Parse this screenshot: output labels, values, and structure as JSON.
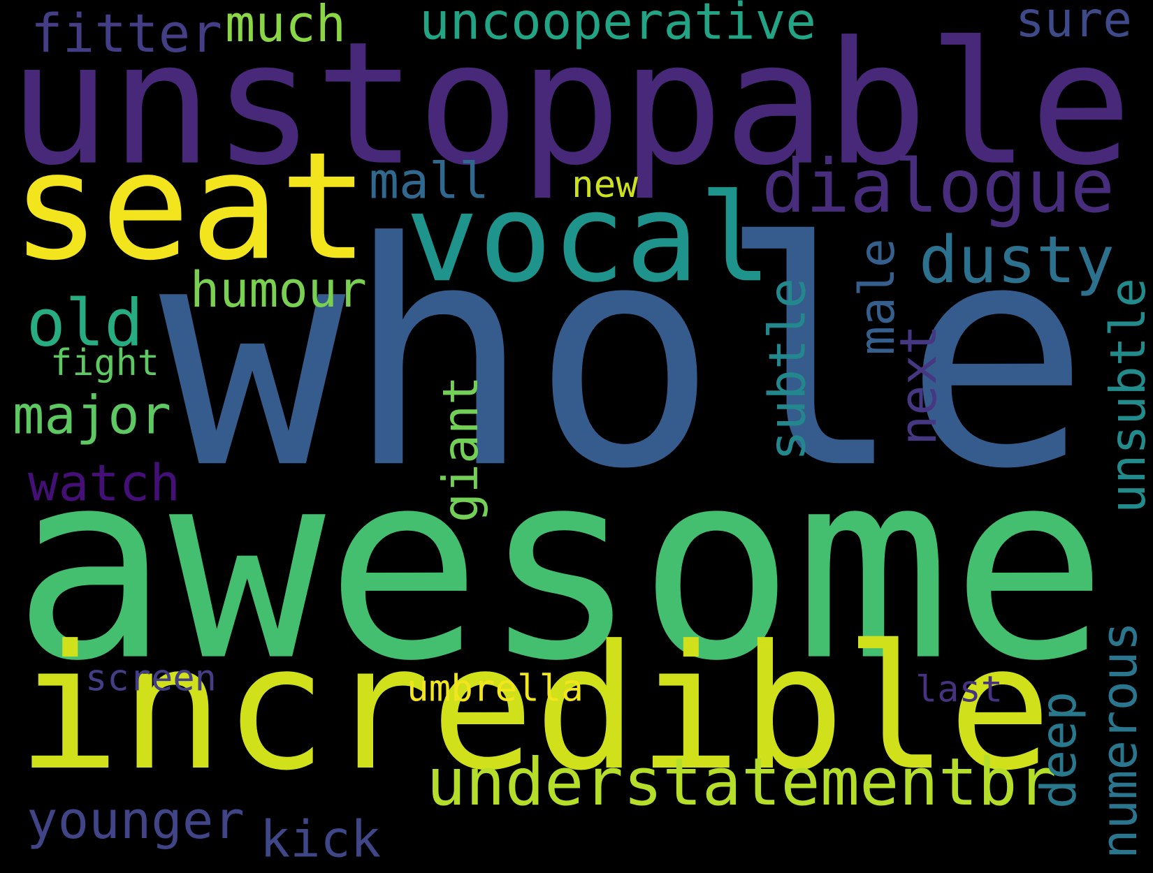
{
  "background": "#000000",
  "words": [
    {
      "text": "unstoppable",
      "color": "#482878"
    },
    {
      "text": "whole",
      "color": "#365c8d"
    },
    {
      "text": "awesome",
      "color": "#44bf70"
    },
    {
      "text": "incredible",
      "color": "#d0e11c"
    },
    {
      "text": "seat",
      "color": "#f2e51d"
    },
    {
      "text": "vocal",
      "color": "#1f948c"
    },
    {
      "text": "dialogue",
      "color": "#472d7b"
    },
    {
      "text": "dusty",
      "color": "#2c728e"
    },
    {
      "text": "understatementbr",
      "color": "#b5de2b"
    },
    {
      "text": "uncooperative",
      "color": "#21a585"
    },
    {
      "text": "fitter",
      "color": "#433e85"
    },
    {
      "text": "much",
      "color": "#8bd646"
    },
    {
      "text": "sure",
      "color": "#3e4a89"
    },
    {
      "text": "mall",
      "color": "#31688e"
    },
    {
      "text": "new",
      "color": "#cde11d"
    },
    {
      "text": "humour",
      "color": "#7ad151"
    },
    {
      "text": "old",
      "color": "#27ad81"
    },
    {
      "text": "fight",
      "color": "#5ec962"
    },
    {
      "text": "major",
      "color": "#5ec962"
    },
    {
      "text": "watch",
      "color": "#440f76"
    },
    {
      "text": "younger",
      "color": "#414487"
    },
    {
      "text": "kick",
      "color": "#3f4788"
    },
    {
      "text": "screen",
      "color": "#433e85"
    },
    {
      "text": "umbrella",
      "color": "#f1e51d"
    },
    {
      "text": "last",
      "color": "#46327e"
    },
    {
      "text": "giant",
      "color": "#73d056"
    },
    {
      "text": "subtle",
      "color": "#23888e"
    },
    {
      "text": "male",
      "color": "#355f8d"
    },
    {
      "text": "next",
      "color": "#453781"
    },
    {
      "text": "unsubtle",
      "color": "#228c8d"
    },
    {
      "text": "deep",
      "color": "#29798e"
    },
    {
      "text": "numerous",
      "color": "#2a768e"
    }
  ]
}
